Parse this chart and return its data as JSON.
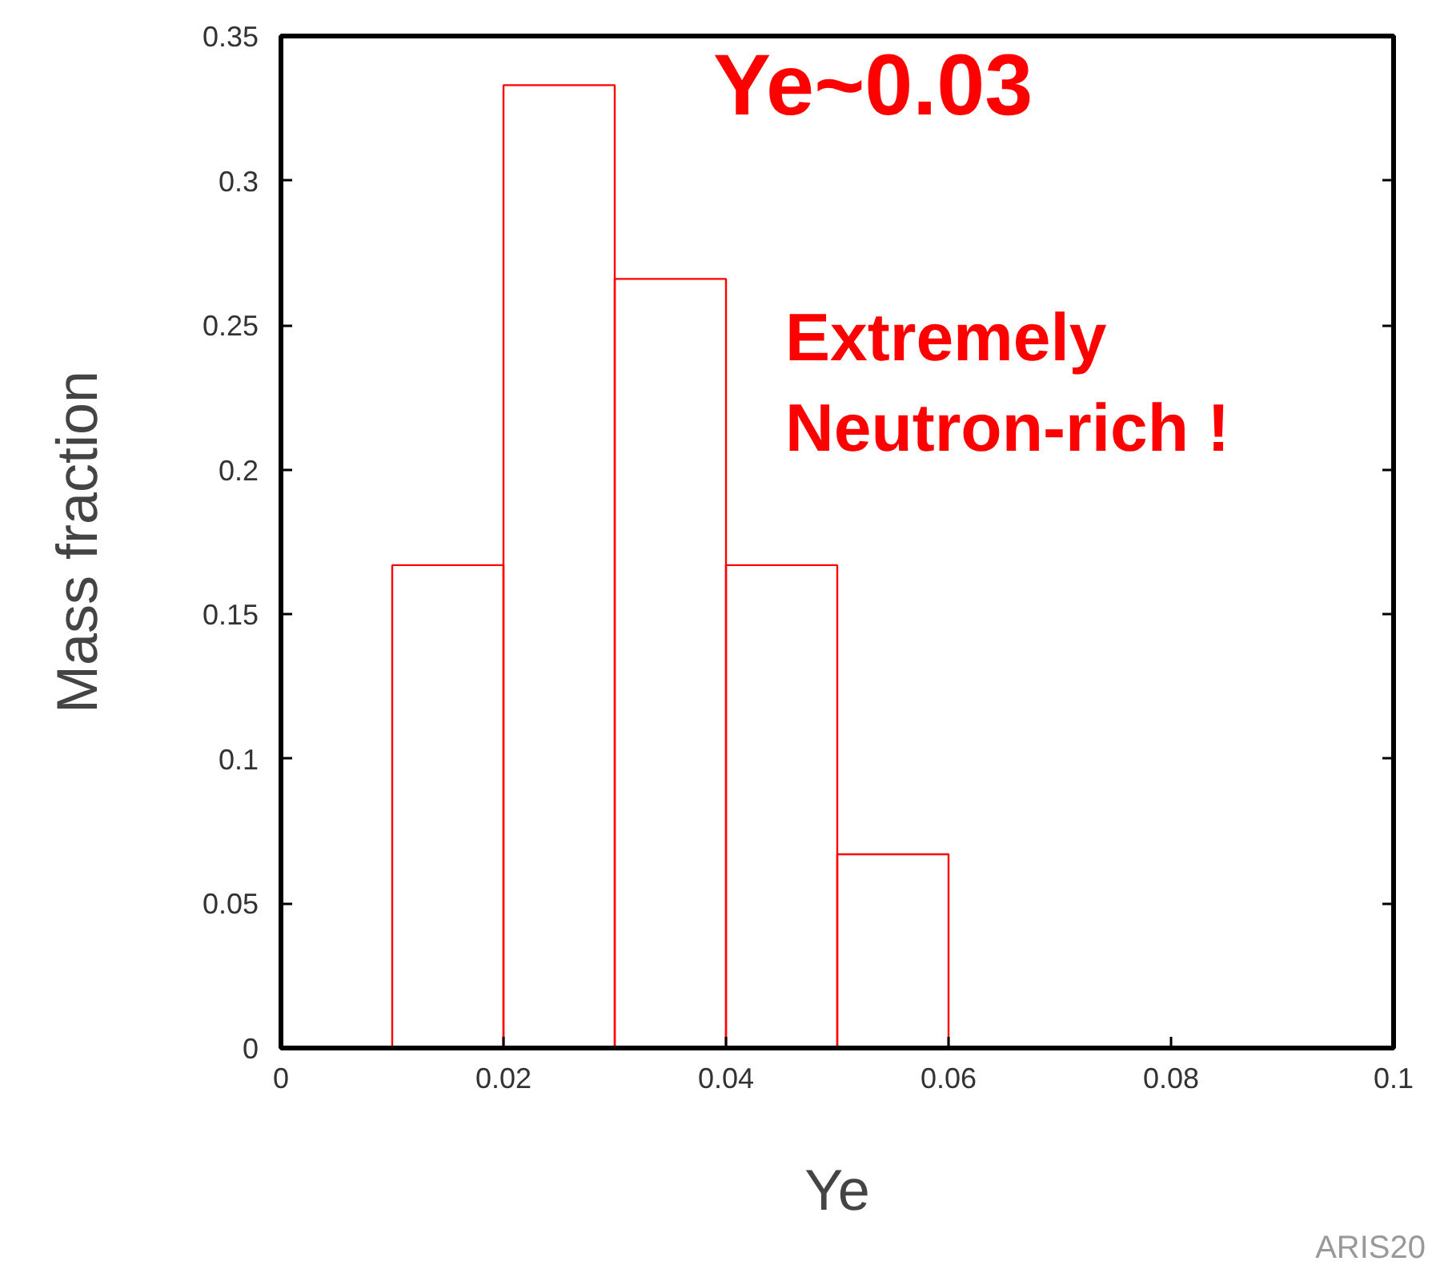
{
  "chart_data": {
    "type": "histogram",
    "xlabel": "Ye",
    "ylabel": "Mass fraction",
    "bins": [
      0.01,
      0.02,
      0.03,
      0.04,
      0.05,
      0.06
    ],
    "values": [
      0.167,
      0.333,
      0.266,
      0.167,
      0.067
    ],
    "color": "#ff0000",
    "xlim": [
      0,
      0.1
    ],
    "xticks": [
      0,
      0.02,
      0.04,
      0.06,
      0.08,
      0.1
    ],
    "ylim": [
      0,
      0.35
    ],
    "yticks": [
      0,
      0.05,
      0.1,
      0.15,
      0.2,
      0.25,
      0.3,
      0.35
    ],
    "grid": false,
    "annotations": [
      "Ye~0.03",
      "Extremely\nNeutron-rich !",
      "ARIS20"
    ]
  }
}
